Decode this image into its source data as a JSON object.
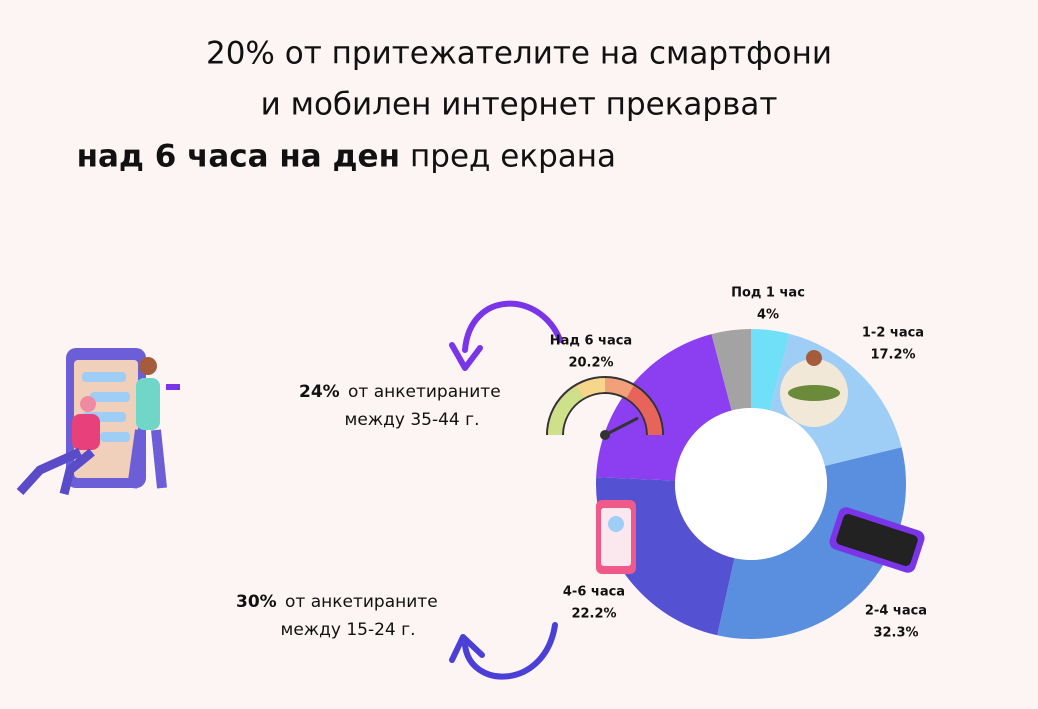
{
  "chart_data": {
    "type": "donut",
    "title_lines": [
      "20% от притежателите на смартфони",
      "и мобилен интернет прекарват"
    ],
    "title_bold": "над 6 часа на ден",
    "title_end": "пред екрана",
    "categories": [
      "Под 1 час",
      "1-2 часа",
      "2-4 часа",
      "4-6 часа",
      "Над 6 часа",
      null
    ],
    "values": [
      4,
      17.2,
      32.3,
      22.2,
      20.2,
      4.1
    ],
    "value_labels": [
      "4%",
      "17.2%",
      "32.3%",
      "22.2%",
      "20.2%",
      null
    ],
    "colors": [
      "#6fe0f8",
      "#9ecdf6",
      "#5a8fe0",
      "#5452d3",
      "#8b3ff0",
      "#a3a3a3"
    ],
    "annotations": [
      {
        "bold": "24%",
        "text": "от анкетираните",
        "line2": "между 35-44 г."
      },
      {
        "bold": "30%",
        "text": "от анкетираните",
        "line2": "между 15-24 г."
      }
    ]
  }
}
